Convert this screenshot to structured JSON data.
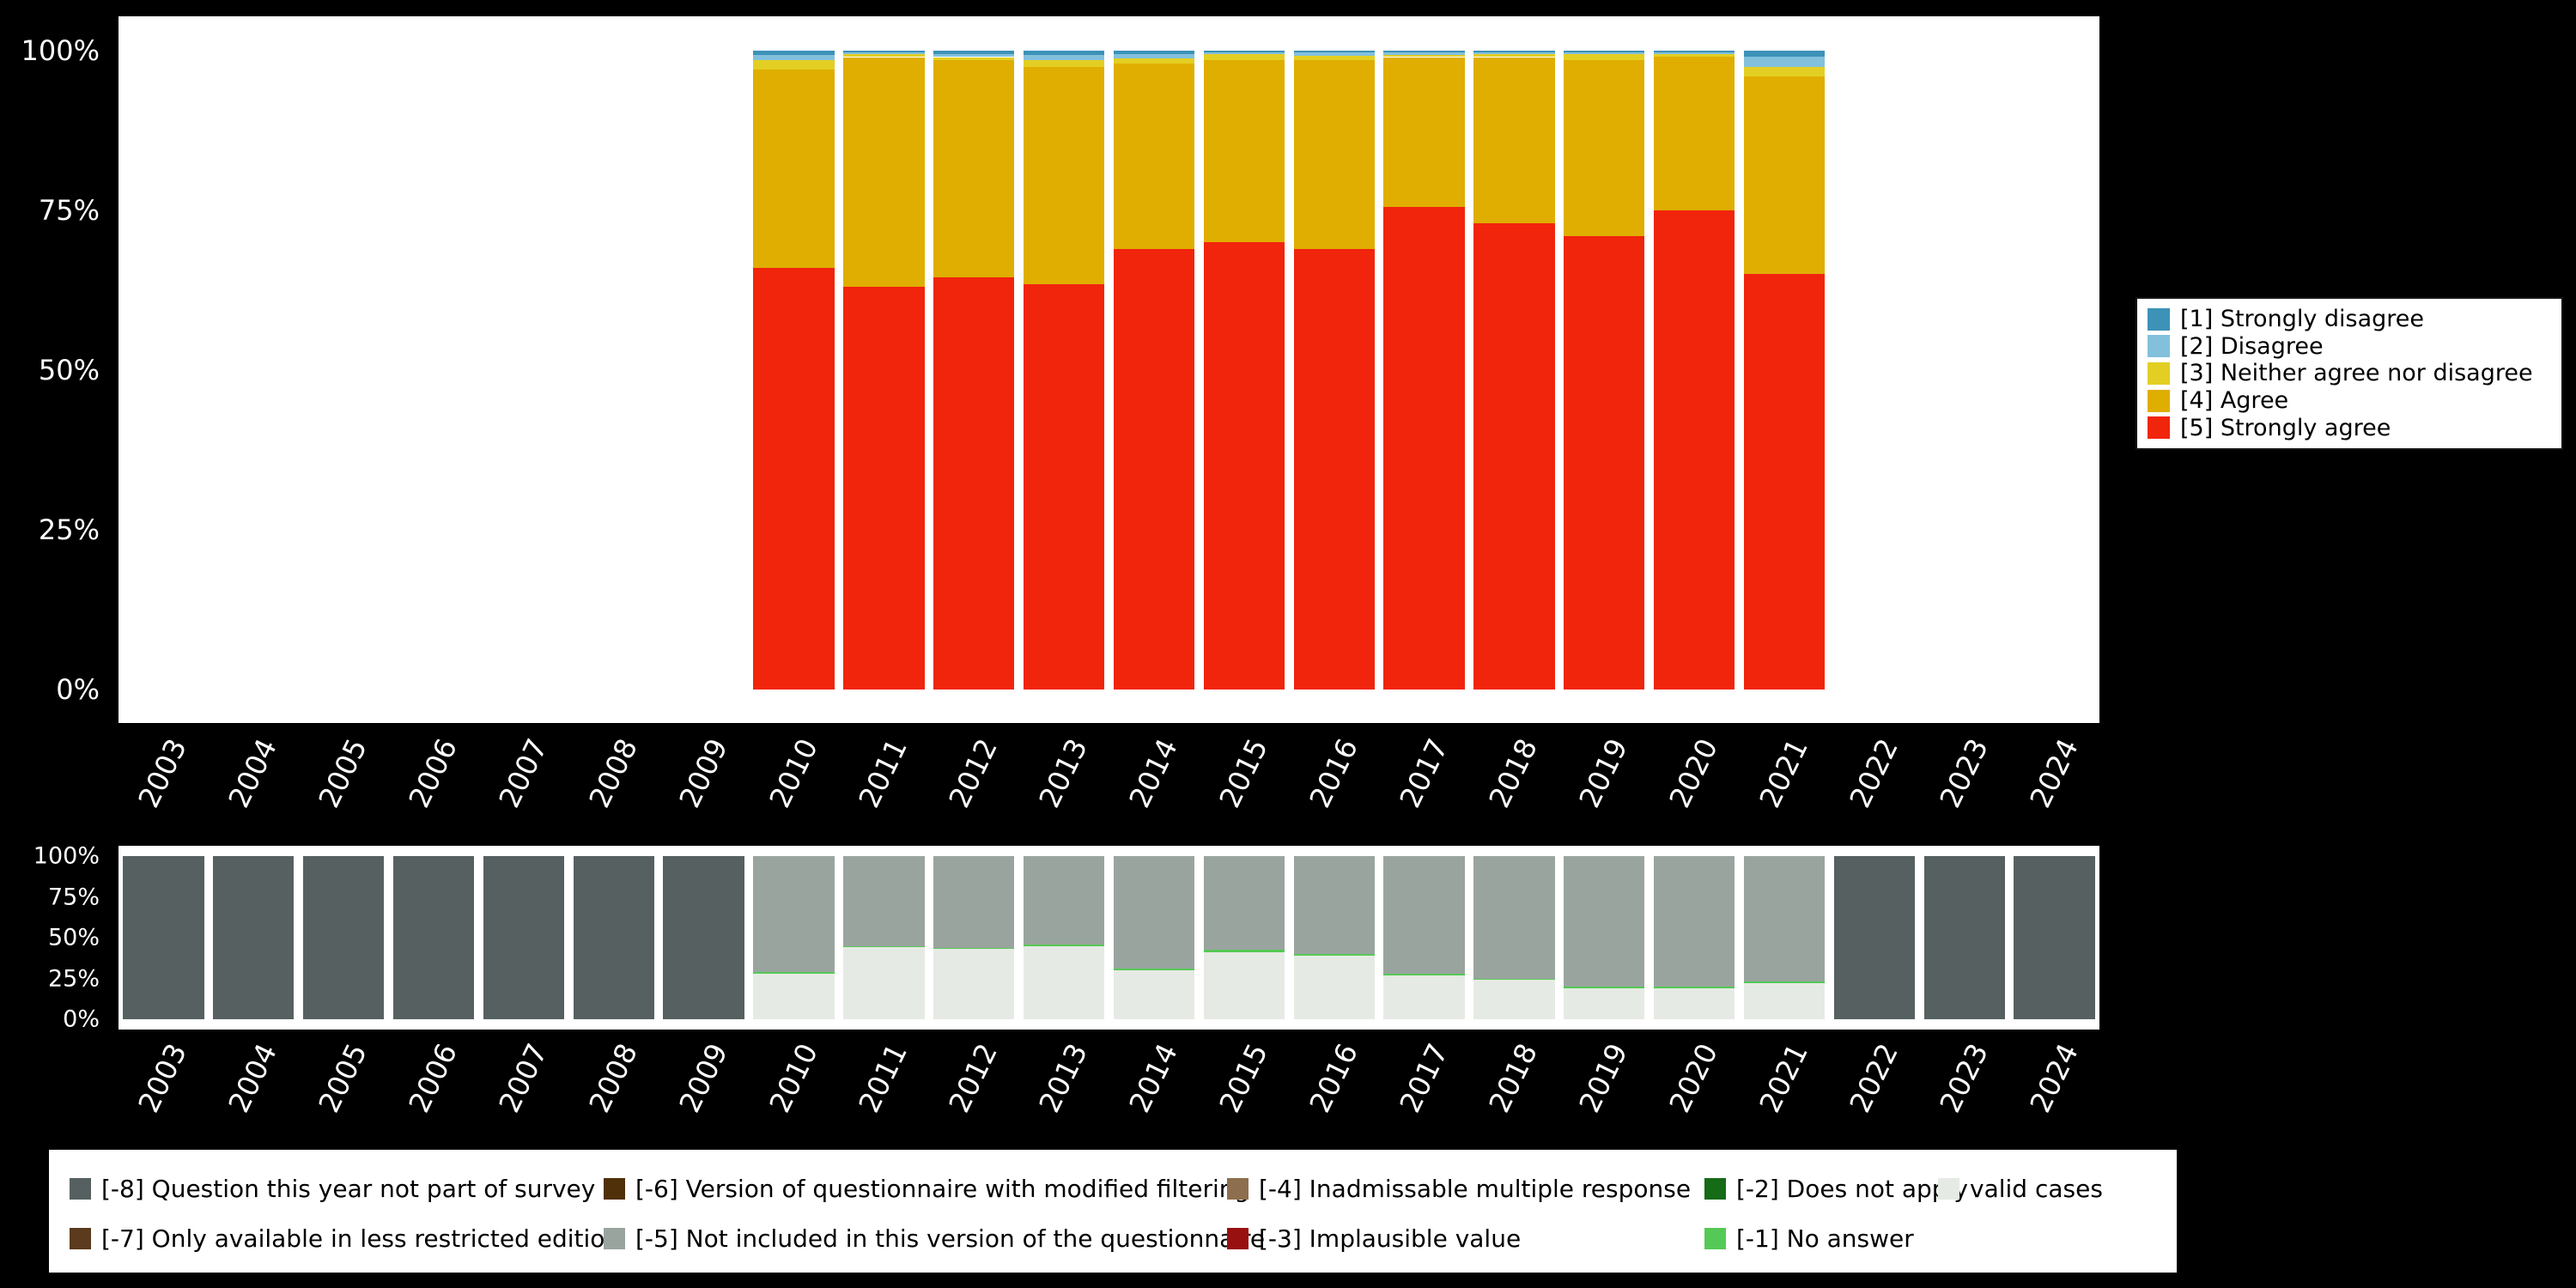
{
  "page": {
    "background": "#000000",
    "panel_background": "#ffffff",
    "axis_text_color": "#ffffff"
  },
  "x_axis_years": [
    "2003",
    "2004",
    "2005",
    "2006",
    "2007",
    "2008",
    "2009",
    "2010",
    "2011",
    "2012",
    "2013",
    "2014",
    "2015",
    "2016",
    "2017",
    "2018",
    "2019",
    "2020",
    "2021",
    "2022",
    "2023",
    "2024"
  ],
  "chart_data": [
    {
      "type": "bar",
      "stacked": true,
      "units": "percent",
      "title": "",
      "categories": [
        "2003",
        "2004",
        "2005",
        "2006",
        "2007",
        "2008",
        "2009",
        "2010",
        "2011",
        "2012",
        "2013",
        "2014",
        "2015",
        "2016",
        "2017",
        "2018",
        "2019",
        "2020",
        "2021",
        "2022",
        "2023",
        "2024"
      ],
      "yticks_top_to_bottom": [
        "100%",
        "75%",
        "50%",
        "25%",
        "0%"
      ],
      "ylim": [
        0,
        100
      ],
      "grid": false,
      "legend_position": "right",
      "stack_order_bottom_to_top": [
        "[5] Strongly agree",
        "[4] Agree",
        "[3] Neither agree nor disagree",
        "[2] Disagree",
        "[1] Strongly disagree"
      ],
      "series": [
        {
          "name": "[1] Strongly disagree",
          "color": "#3d92b8",
          "values": [
            null,
            null,
            null,
            null,
            null,
            null,
            null,
            0.7,
            0.2,
            0.5,
            0.7,
            0.5,
            0.2,
            0.3,
            0.3,
            0.2,
            0.2,
            0.2,
            1.0,
            null,
            null,
            null
          ]
        },
        {
          "name": "[2] Disagree",
          "color": "#82c0dc",
          "values": [
            null,
            null,
            null,
            null,
            null,
            null,
            null,
            0.8,
            0.3,
            0.5,
            0.8,
            0.7,
            0.3,
            0.5,
            0.3,
            0.3,
            0.3,
            0.3,
            1.5,
            null,
            null,
            null
          ]
        },
        {
          "name": "[3] Neither agree nor disagree",
          "color": "#e3cf23",
          "values": [
            null,
            null,
            null,
            null,
            null,
            null,
            null,
            1.5,
            0.5,
            0.5,
            1.0,
            0.8,
            1.0,
            0.7,
            0.4,
            0.5,
            1.0,
            0.5,
            1.5,
            null,
            null,
            null
          ]
        },
        {
          "name": "[4] Agree",
          "color": "#dfae00",
          "values": [
            null,
            null,
            null,
            null,
            null,
            null,
            null,
            31,
            36,
            34,
            34,
            29,
            28.5,
            29.5,
            23.5,
            26,
            27.5,
            24,
            31,
            null,
            null,
            null
          ]
        },
        {
          "name": "[5] Strongly agree",
          "color": "#f1240c",
          "values": [
            null,
            null,
            null,
            null,
            null,
            null,
            null,
            66,
            63,
            64.5,
            63.5,
            69,
            70,
            69,
            75.5,
            73,
            71,
            75,
            65,
            null,
            null,
            null
          ]
        }
      ],
      "legend": [
        {
          "label": "[1] Strongly disagree",
          "color": "#3d92b8"
        },
        {
          "label": "[2] Disagree",
          "color": "#82c0dc"
        },
        {
          "label": "[3] Neither agree nor disagree",
          "color": "#e3cf23"
        },
        {
          "label": "[4] Agree",
          "color": "#dfae00"
        },
        {
          "label": "[5] Strongly agree",
          "color": "#f1240c"
        }
      ]
    },
    {
      "type": "bar",
      "stacked": true,
      "units": "percent",
      "title": "",
      "categories": [
        "2003",
        "2004",
        "2005",
        "2006",
        "2007",
        "2008",
        "2009",
        "2010",
        "2011",
        "2012",
        "2013",
        "2014",
        "2015",
        "2016",
        "2017",
        "2018",
        "2019",
        "2020",
        "2021",
        "2022",
        "2023",
        "2024"
      ],
      "yticks_top_to_bottom": [
        "100%",
        "75%",
        "50%",
        "25%",
        "0%"
      ],
      "ylim": [
        0,
        100
      ],
      "grid": false,
      "legend_position": "bottom",
      "stack_order_bottom_to_top": [
        "valid cases",
        "[-1] No answer",
        "[-5] Not included in this version of the questionnaire",
        "[-8] Question this year not part of survey"
      ],
      "series": [
        {
          "name": "valid cases",
          "color": "#e6eae4",
          "values": [
            null,
            null,
            null,
            null,
            null,
            null,
            null,
            28,
            44,
            43,
            45,
            30,
            41,
            39,
            27,
            24,
            19,
            19,
            22,
            null,
            null,
            null
          ]
        },
        {
          "name": "[-1] No answer",
          "color": "#55c955",
          "values": [
            null,
            null,
            null,
            null,
            null,
            null,
            null,
            1,
            0.8,
            0.8,
            0.8,
            1,
            1.5,
            1,
            1,
            0.8,
            0.8,
            0.8,
            1,
            null,
            null,
            null
          ]
        },
        {
          "name": "[-5] Not included in this version of the questionnaire",
          "color": "#9aa49f",
          "values": [
            null,
            null,
            null,
            null,
            null,
            null,
            null,
            71,
            55.2,
            56.2,
            54.2,
            69,
            57.5,
            60,
            72,
            75.2,
            80.2,
            80.2,
            77,
            null,
            null,
            null
          ]
        },
        {
          "name": "[-8] Question this year not part of survey",
          "color": "#566060",
          "values": [
            100,
            100,
            100,
            100,
            100,
            100,
            100,
            null,
            null,
            null,
            null,
            null,
            null,
            null,
            null,
            null,
            null,
            null,
            null,
            100,
            100,
            100
          ]
        }
      ],
      "legend_columns": [
        {
          "items": [
            {
              "label": "[-8] Question this year not part of survey",
              "color": "#566060"
            },
            {
              "label": "[-7] Only available in less restricted edition",
              "color": "#5b3a1e"
            }
          ]
        },
        {
          "items": [
            {
              "label": "[-6] Version of questionnaire with modified filtering",
              "color": "#4f3008"
            },
            {
              "label": "[-5] Not included in this version of the questionnaire",
              "color": "#9aa49f"
            }
          ]
        },
        {
          "items": [
            {
              "label": "[-4] Inadmissable multiple response",
              "color": "#8d6e4e"
            },
            {
              "label": "[-3] Implausible value",
              "color": "#991010"
            }
          ]
        },
        {
          "items": [
            {
              "label": "[-2] Does not apply",
              "color": "#166b16"
            },
            {
              "label": "[-1] No answer",
              "color": "#55c955"
            }
          ]
        },
        {
          "items": [
            {
              "label": "valid cases",
              "color": "#e6eae4"
            }
          ]
        }
      ]
    }
  ]
}
